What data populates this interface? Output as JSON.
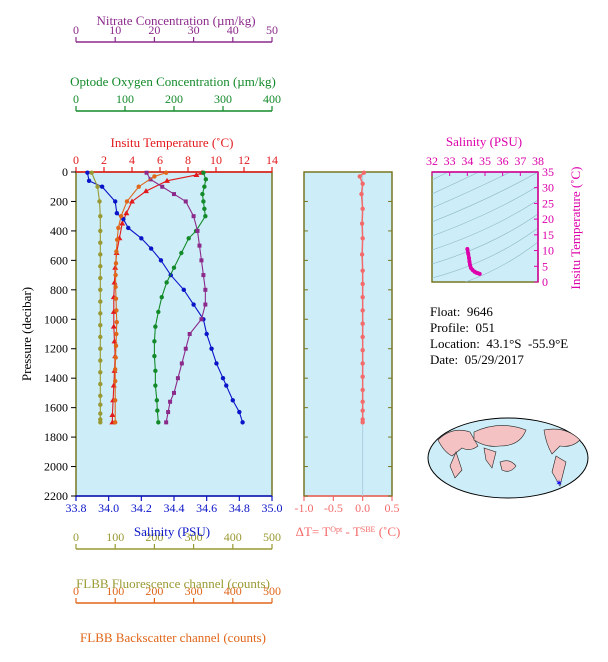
{
  "float_info": {
    "float": "Float:  9646",
    "profile": "Profile:  051",
    "location": "Location:  43.1°S  -55.9°E",
    "date": "Date:  05/29/2017"
  },
  "colors": {
    "nitrate": "#8b2a8b",
    "oxygen": "#138a2a",
    "temperature": "#e31a1c",
    "salinity": "#0a14c8",
    "fluorescence": "#999933",
    "backscatter": "#e0661a",
    "delta_t": "#f46a6a",
    "ts_salinity": "#dd00aa",
    "panel_bg": "#cdeef8",
    "panel_frame": "#777722"
  },
  "chart_data": [
    {
      "type": "line",
      "title": "",
      "ylabel": "Pressure (decibar)",
      "ylim": [
        2200,
        0
      ],
      "yticks": [
        "0",
        "200",
        "400",
        "600",
        "800",
        "1000",
        "1200",
        "1400",
        "1600",
        "1800",
        "2000",
        "2200"
      ],
      "grid": false,
      "legend": "none",
      "axes": {
        "nitrate": {
          "label": "Nitrate Concentration (µm/kg)",
          "xlim": [
            0,
            50
          ],
          "ticks": [
            "0",
            "10",
            "20",
            "30",
            "40",
            "50"
          ]
        },
        "oxygen": {
          "label": "Optode Oxygen Concentration (µm/kg)",
          "xlim": [
            0,
            400
          ],
          "ticks": [
            "0",
            "100",
            "200",
            "300",
            "400"
          ]
        },
        "temperature": {
          "label": "Insitu Temperature (˚C)",
          "xlim": [
            0,
            14
          ],
          "ticks": [
            "0",
            "2",
            "4",
            "6",
            "8",
            "10",
            "12",
            "14"
          ]
        },
        "salinity": {
          "label": "Salinity (PSU)",
          "xlim": [
            33.8,
            35.0
          ],
          "ticks": [
            "33.8",
            "34.0",
            "34.2",
            "34.4",
            "34.6",
            "34.8",
            "35.0"
          ]
        },
        "fluorescence": {
          "label": "FLBB Fluorescence channel (counts)",
          "xlim": [
            0,
            500
          ],
          "ticks": [
            "0",
            "100",
            "200",
            "300",
            "400",
            "500"
          ]
        },
        "backscatter": {
          "label": "FLBB Backscatter channel (counts)",
          "xlim": [
            0,
            500
          ],
          "ticks": [
            "0",
            "100",
            "200",
            "300",
            "400",
            "500"
          ]
        }
      },
      "series": [
        {
          "id": "temperature",
          "axis": "temperature",
          "marker": "triangle",
          "x": [
            9.0,
            8.6,
            6.5,
            5.0,
            4.0,
            3.6,
            3.3,
            3.1,
            2.9,
            2.8,
            2.75,
            2.7,
            2.7,
            2.7,
            2.75,
            2.8,
            2.75,
            2.7,
            2.65,
            2.6,
            2.6
          ],
          "y": [
            5,
            20,
            60,
            130,
            200,
            280,
            350,
            450,
            550,
            650,
            750,
            850,
            950,
            1050,
            1150,
            1250,
            1350,
            1450,
            1550,
            1650,
            1700
          ]
        },
        {
          "id": "salinity",
          "axis": "salinity",
          "marker": "circle",
          "x": [
            33.87,
            33.88,
            33.96,
            34.04,
            34.05,
            34.09,
            34.12,
            34.2,
            34.26,
            34.32,
            34.38,
            34.46,
            34.52,
            34.58,
            34.6,
            34.63,
            34.66,
            34.7,
            34.72,
            34.76,
            34.8,
            34.82
          ],
          "y": [
            5,
            60,
            100,
            200,
            280,
            320,
            380,
            450,
            520,
            600,
            700,
            800,
            900,
            1000,
            1100,
            1200,
            1300,
            1400,
            1450,
            1550,
            1630,
            1700
          ]
        },
        {
          "id": "oxygen",
          "axis": "oxygen",
          "marker": "circle",
          "x": [
            260,
            265,
            262,
            258,
            260,
            262,
            264,
            245,
            230,
            215,
            200,
            185,
            175,
            168,
            162,
            160,
            160,
            162,
            162,
            165,
            166,
            168
          ],
          "y": [
            5,
            50,
            100,
            150,
            200,
            250,
            300,
            400,
            450,
            550,
            650,
            750,
            850,
            950,
            1050,
            1150,
            1250,
            1350,
            1450,
            1550,
            1620,
            1700
          ]
        },
        {
          "id": "nitrate",
          "axis": "nitrate",
          "marker": "square",
          "x": [
            18,
            19,
            22,
            25,
            28,
            30,
            31,
            31.5,
            32,
            32.5,
            33,
            33,
            32,
            29,
            28,
            27,
            26,
            25,
            24,
            23.5,
            23
          ],
          "y": [
            5,
            50,
            100,
            150,
            200,
            300,
            400,
            500,
            600,
            700,
            800,
            900,
            1000,
            1100,
            1200,
            1300,
            1400,
            1500,
            1560,
            1630,
            1700
          ]
        },
        {
          "id": "fluorescence",
          "axis": "fluorescence",
          "marker": "circle",
          "x": [
            40,
            55,
            60,
            62,
            62,
            62,
            62,
            62,
            62,
            62,
            62,
            62,
            62,
            62,
            62,
            62,
            62,
            62,
            62,
            62,
            62,
            62,
            62
          ],
          "y": [
            5,
            100,
            200,
            300,
            400,
            480,
            560,
            640,
            720,
            800,
            880,
            960,
            1040,
            1120,
            1200,
            1280,
            1360,
            1440,
            1520,
            1580,
            1640,
            1680,
            1700
          ]
        },
        {
          "id": "backscatter",
          "axis": "backscatter",
          "marker": "circle",
          "x": [
            230,
            200,
            160,
            130,
            115,
            108,
            105,
            103,
            102,
            101,
            101,
            102,
            103,
            104,
            103,
            102,
            101,
            100,
            100,
            100,
            100
          ],
          "y": [
            5,
            30,
            100,
            200,
            300,
            380,
            460,
            540,
            620,
            700,
            780,
            860,
            940,
            1020,
            1100,
            1180,
            1260,
            1340,
            1420,
            1550,
            1700
          ]
        }
      ]
    },
    {
      "type": "line",
      "title": "",
      "xlabel": "ΔT= T^Opt - T^SBE (˚C)",
      "xlim": [
        -1.0,
        0.5
      ],
      "xticks": [
        "-1.0",
        "-0.5",
        "0.0",
        "0.5"
      ],
      "ylim": [
        2200,
        0
      ],
      "legend": "none",
      "series": [
        {
          "id": "delta_t",
          "marker": "circle",
          "x": [
            0.02,
            -0.05,
            0.0,
            -0.02,
            0.0,
            -0.01,
            0.0,
            -0.01,
            0.0,
            0.0,
            0.0,
            0.0,
            0.0,
            0.0,
            0.0,
            0.0,
            0.0,
            0.0,
            0.0,
            0.0,
            0.0,
            0.0
          ],
          "y": [
            5,
            30,
            80,
            150,
            250,
            350,
            450,
            560,
            670,
            760,
            850,
            940,
            1030,
            1120,
            1210,
            1300,
            1390,
            1480,
            1560,
            1620,
            1680,
            1700
          ]
        }
      ]
    },
    {
      "type": "scatter",
      "title": "",
      "xlabel": "Salinity (PSU)",
      "ylabel": "Insitu Temperature (˚C)",
      "xlim": [
        32,
        38
      ],
      "ylim": [
        0,
        35
      ],
      "xticks": [
        "32",
        "33",
        "34",
        "35",
        "36",
        "37",
        "38"
      ],
      "yticks": [
        "0",
        "5",
        "10",
        "15",
        "20",
        "25",
        "30",
        "35"
      ],
      "legend": "none",
      "series": [
        {
          "id": "ts",
          "x": [
            34.0,
            34.05,
            34.1,
            34.12,
            34.15,
            34.2,
            34.3,
            34.4,
            34.5,
            34.6,
            34.7
          ],
          "y": [
            10.5,
            9.0,
            7.5,
            6.5,
            5.5,
            4.5,
            3.8,
            3.3,
            3.0,
            2.8,
            2.6
          ]
        }
      ]
    }
  ]
}
